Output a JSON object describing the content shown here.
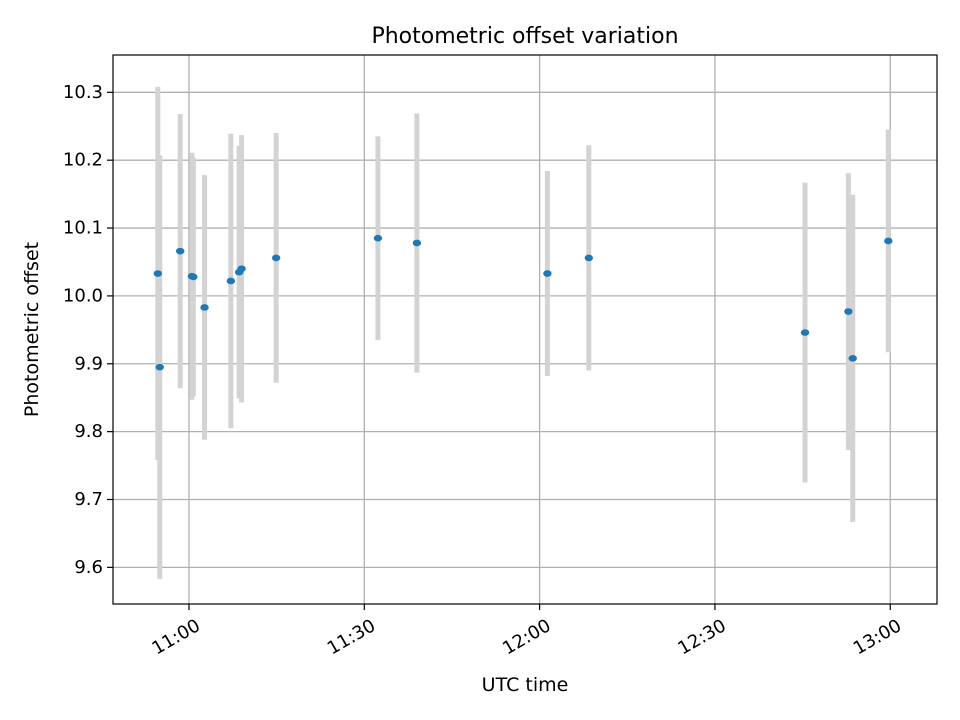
{
  "chart_data": {
    "type": "scatter",
    "title": "Photometric offset variation",
    "xlabel": "UTC time",
    "ylabel": "Photometric offset",
    "grid": true,
    "xlim": [
      "10:47",
      "13:08"
    ],
    "ylim": [
      9.546,
      10.355
    ],
    "x_ticks": [
      "11:00",
      "11:30",
      "12:00",
      "12:30",
      "13:00"
    ],
    "y_ticks": [
      "9.6",
      "9.7",
      "9.8",
      "9.9",
      "10.0",
      "10.1",
      "10.2",
      "10.3"
    ],
    "colors": {
      "points": "#1f77b4",
      "errorbars": "#d3d3d3",
      "grid": "#b0b0b0"
    },
    "points": [
      {
        "time": "10:54:40",
        "y": 10.033,
        "err": 0.275
      },
      {
        "time": "10:55:00",
        "y": 9.895,
        "err": 0.312
      },
      {
        "time": "10:58:30",
        "y": 10.066,
        "err": 0.202
      },
      {
        "time": "11:00:30",
        "y": 10.029,
        "err": 0.182
      },
      {
        "time": "11:00:45",
        "y": 10.028,
        "err": 0.176
      },
      {
        "time": "11:02:40",
        "y": 9.983,
        "err": 0.195
      },
      {
        "time": "11:07:10",
        "y": 10.022,
        "err": 0.217
      },
      {
        "time": "11:08:35",
        "y": 10.035,
        "err": 0.186
      },
      {
        "time": "11:09:00",
        "y": 10.04,
        "err": 0.197
      },
      {
        "time": "11:14:55",
        "y": 10.056,
        "err": 0.184
      },
      {
        "time": "11:32:20",
        "y": 10.085,
        "err": 0.15
      },
      {
        "time": "11:39:00",
        "y": 10.078,
        "err": 0.191
      },
      {
        "time": "12:01:20",
        "y": 10.033,
        "err": 0.151
      },
      {
        "time": "12:08:25",
        "y": 10.056,
        "err": 0.166
      },
      {
        "time": "12:45:25",
        "y": 9.946,
        "err": 0.221
      },
      {
        "time": "12:52:50",
        "y": 9.977,
        "err": 0.204
      },
      {
        "time": "12:53:35",
        "y": 9.908,
        "err": 0.241
      },
      {
        "time": "12:59:40",
        "y": 10.081,
        "err": 0.164
      }
    ]
  }
}
